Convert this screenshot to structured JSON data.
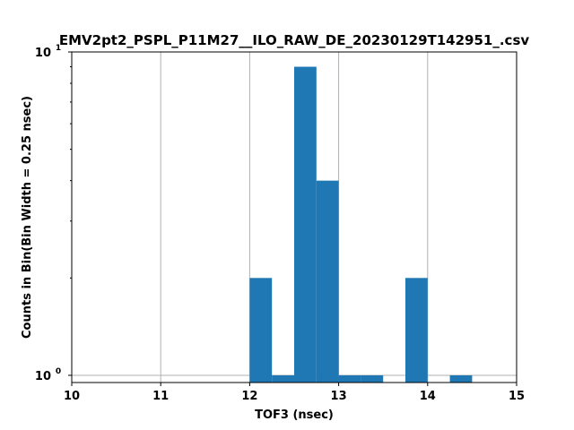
{
  "chart_data": {
    "type": "bar",
    "title": "EMV2pt2_PSPL_P11M27__ILO_RAW_DE_20230129T142951_.csv",
    "xlabel": "TOF3 (nsec)",
    "ylabel": "Counts in Bin(Bin Width = 0.25 nsec)",
    "xlim": [
      10,
      15
    ],
    "ylim": [
      0.95,
      10
    ],
    "yscale": "log",
    "grid": true,
    "x_ticks": [
      "10",
      "11",
      "12",
      "13",
      "14",
      "15"
    ],
    "y_ticks": [
      {
        "value": 1,
        "base": "10",
        "exp": "0"
      },
      {
        "value": 10,
        "base": "10",
        "exp": "1"
      }
    ],
    "bin_width": 0.25,
    "bins": [
      {
        "x0": 12.0,
        "x1": 12.25,
        "count": 2
      },
      {
        "x0": 12.25,
        "x1": 12.5,
        "count": 1
      },
      {
        "x0": 12.5,
        "x1": 12.75,
        "count": 9
      },
      {
        "x0": 12.75,
        "x1": 13.0,
        "count": 4
      },
      {
        "x0": 13.0,
        "x1": 13.25,
        "count": 1
      },
      {
        "x0": 13.25,
        "x1": 13.5,
        "count": 1
      },
      {
        "x0": 13.75,
        "x1": 14.0,
        "count": 2
      },
      {
        "x0": 14.25,
        "x1": 14.5,
        "count": 1
      }
    ],
    "bar_color": "#1f77b4",
    "grid_color": "#b0b0b0"
  }
}
